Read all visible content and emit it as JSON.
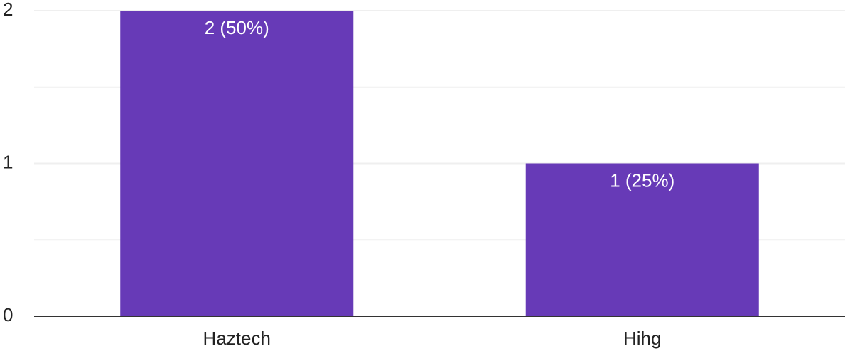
{
  "chart_data": {
    "type": "bar",
    "categories": [
      "Haztech",
      "Hihg"
    ],
    "values": [
      2,
      1
    ],
    "data_labels": [
      "2 (50%)",
      "1 (25%)"
    ],
    "y_ticks": [
      0,
      1,
      2
    ],
    "ylim": [
      0,
      2
    ],
    "grid": true,
    "title": "",
    "xlabel": "",
    "ylabel": "",
    "bar_color": "#673ab7",
    "gridline_color": "#efefef",
    "axis_color": "#333333",
    "text_color": "#222222",
    "label_color": "#ffffff"
  }
}
